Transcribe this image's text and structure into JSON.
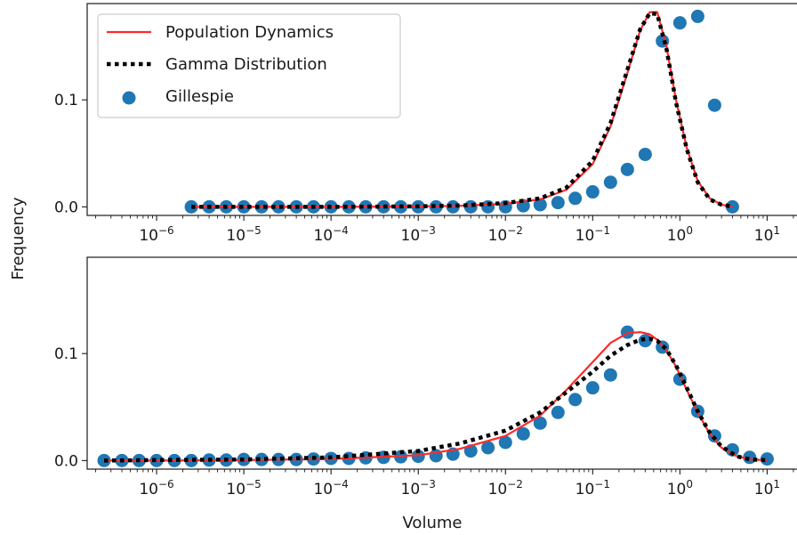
{
  "chart_data": {
    "type": "scatter",
    "ylabel": "Frequency",
    "xlabel": "Volume",
    "x_scale": "log",
    "shared_x": true,
    "xlim": [
      1.6e-07,
      22
    ],
    "x_ticks": [
      {
        "value": 1e-06,
        "base": "10",
        "exp": "−6"
      },
      {
        "value": 1e-05,
        "base": "10",
        "exp": "−5"
      },
      {
        "value": 0.0001,
        "base": "10",
        "exp": "−4"
      },
      {
        "value": 0.001,
        "base": "10",
        "exp": "−3"
      },
      {
        "value": 0.01,
        "base": "10",
        "exp": "−2"
      },
      {
        "value": 0.1,
        "base": "10",
        "exp": "−1"
      },
      {
        "value": 1,
        "base": "10",
        "exp": "0"
      },
      {
        "value": 10,
        "base": "10",
        "exp": "1"
      }
    ],
    "y_ticks": [
      {
        "value": 0.0,
        "label": "0.0"
      },
      {
        "value": 0.1,
        "label": "0.1"
      }
    ],
    "ylim": [
      -0.008,
      0.19
    ],
    "legend": {
      "location": "upper left",
      "entries": [
        {
          "label": "Population Dynamics",
          "style": "line",
          "color": "#ff2a2a"
        },
        {
          "label": "Gamma Distribution",
          "style": "dotted",
          "color": "#000000"
        },
        {
          "label": "Gillespie",
          "style": "marker",
          "color": "#1f77b4"
        }
      ]
    },
    "colors": {
      "population_dynamics": "#ff2a2a",
      "gamma": "#000000",
      "gillespie": "#1f77b4"
    },
    "panels": [
      {
        "name": "top",
        "show_legend": true,
        "series": [
          {
            "name": "Gillespie",
            "type": "scatter",
            "x": [
              2.5e-06,
              4e-06,
              6.3e-06,
              1e-05,
              1.6e-05,
              2.5e-05,
              4e-05,
              6.3e-05,
              0.0001,
              0.00016,
              0.00025,
              0.0004,
              0.00063,
              0.001,
              0.0016,
              0.0025,
              0.004,
              0.0063,
              0.01,
              0.016,
              0.025,
              0.04,
              0.063,
              0.1,
              0.16,
              0.25,
              0.4,
              0.63,
              1.0,
              1.6,
              2.5,
              4.0
            ],
            "y": [
              0,
              0,
              0,
              0,
              0,
              0,
              0,
              0,
              0,
              0,
              0,
              0,
              0,
              0,
              0,
              0,
              0,
              0,
              0,
              0.001,
              0.002,
              0.004,
              0.008,
              0.014,
              0.023,
              0.035,
              0.049,
              0.155,
              0.172,
              0.178,
              0.095,
              0.0
            ]
          },
          {
            "name": "Population Dynamics",
            "type": "line",
            "x": [
              2.5e-06,
              1e-05,
              0.0001,
              0.001,
              0.003,
              0.01,
              0.025,
              0.05,
              0.1,
              0.16,
              0.25,
              0.35,
              0.45,
              0.55,
              0.7,
              0.9,
              1.2,
              1.6,
              2.2,
              3.0,
              4.0
            ],
            "y": [
              0,
              0,
              0,
              0.0005,
              0.001,
              0.003,
              0.007,
              0.016,
              0.04,
              0.075,
              0.125,
              0.165,
              0.182,
              0.182,
              0.15,
              0.1,
              0.055,
              0.024,
              0.008,
              0.002,
              0.0003
            ]
          },
          {
            "name": "Gamma Distribution",
            "type": "dotted",
            "x": [
              2.5e-06,
              1e-05,
              0.0001,
              0.001,
              0.003,
              0.01,
              0.025,
              0.05,
              0.1,
              0.16,
              0.25,
              0.35,
              0.45,
              0.55,
              0.7,
              0.9,
              1.2,
              1.6,
              2.2,
              3.0,
              4.0
            ],
            "y": [
              0,
              0,
              0,
              0.0005,
              0.0012,
              0.0035,
              0.008,
              0.018,
              0.043,
              0.078,
              0.128,
              0.166,
              0.181,
              0.18,
              0.148,
              0.098,
              0.054,
              0.023,
              0.007,
              0.002,
              0.0003
            ]
          }
        ]
      },
      {
        "name": "bottom",
        "show_legend": false,
        "series": [
          {
            "name": "Gillespie",
            "type": "scatter",
            "x": [
              2.5e-07,
              4e-07,
              6.3e-07,
              1e-06,
              1.6e-06,
              2.5e-06,
              4e-06,
              6.3e-06,
              1e-05,
              1.6e-05,
              2.5e-05,
              4e-05,
              6.3e-05,
              0.0001,
              0.00016,
              0.00025,
              0.0004,
              0.00063,
              0.001,
              0.0016,
              0.0025,
              0.004,
              0.0063,
              0.01,
              0.016,
              0.025,
              0.04,
              0.063,
              0.1,
              0.16,
              0.25,
              0.4,
              0.63,
              1.0,
              1.6,
              2.5,
              4.0,
              6.3,
              10.0
            ],
            "y": [
              0,
              0,
              0,
              0,
              0,
              0,
              0.0005,
              0.0005,
              0.001,
              0.001,
              0.001,
              0.001,
              0.0015,
              0.002,
              0.002,
              0.0025,
              0.003,
              0.0035,
              0.004,
              0.0045,
              0.006,
              0.009,
              0.012,
              0.017,
              0.025,
              0.035,
              0.045,
              0.057,
              0.068,
              0.08,
              0.12,
              0.112,
              0.106,
              0.076,
              0.046,
              0.023,
              0.01,
              0.003,
              0.0015
            ]
          },
          {
            "name": "Population Dynamics",
            "type": "line",
            "x": [
              2.5e-07,
              1e-06,
              1e-05,
              0.0001,
              0.001,
              0.003,
              0.01,
              0.025,
              0.05,
              0.1,
              0.16,
              0.25,
              0.35,
              0.45,
              0.55,
              0.7,
              0.9,
              1.2,
              1.6,
              2.2,
              3.0,
              4.5,
              6.5,
              10.0
            ],
            "y": [
              0,
              0,
              0.0005,
              0.0015,
              0.005,
              0.011,
              0.023,
              0.042,
              0.066,
              0.092,
              0.11,
              0.119,
              0.12,
              0.118,
              0.113,
              0.103,
              0.088,
              0.066,
              0.045,
              0.025,
              0.012,
              0.004,
              0.001,
              0.0003
            ]
          },
          {
            "name": "Gamma Distribution",
            "type": "dotted",
            "x": [
              2.5e-07,
              1e-06,
              1e-05,
              0.0001,
              0.001,
              0.003,
              0.01,
              0.025,
              0.05,
              0.1,
              0.16,
              0.25,
              0.35,
              0.45,
              0.55,
              0.7,
              0.9,
              1.2,
              1.6,
              2.2,
              3.0,
              4.5,
              6.5,
              10.0
            ],
            "y": [
              0,
              0.0005,
              0.001,
              0.003,
              0.009,
              0.016,
              0.028,
              0.045,
              0.064,
              0.083,
              0.098,
              0.108,
              0.113,
              0.114,
              0.112,
              0.104,
              0.089,
              0.068,
              0.046,
              0.026,
              0.013,
              0.004,
              0.001,
              0.0003
            ]
          }
        ]
      }
    ]
  }
}
